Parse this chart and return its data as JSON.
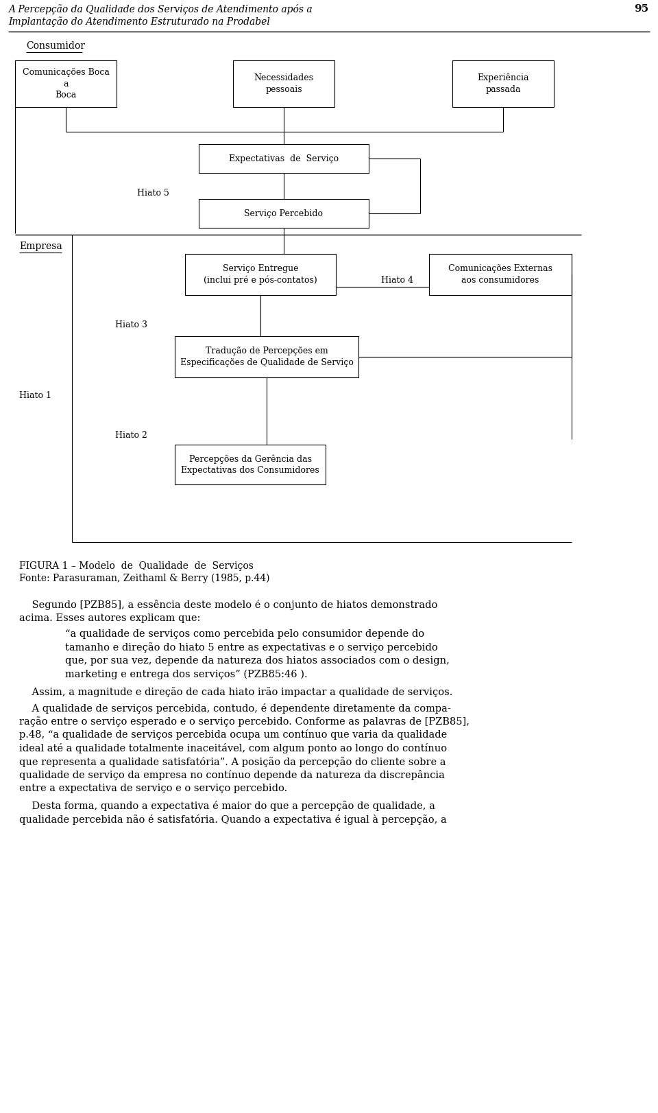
{
  "header_line1": "A Percepção da Qualidade dos Serviços de Atendimento após a",
  "header_line2": "Implantação do Atendimento Estruturado na Prodabel",
  "header_page": "95",
  "consumidor_label": "Consumidor",
  "empresa_label": "Empresa",
  "box_boca": "Comunicações Boca\na\nBoca",
  "box_necessidades": "Necessidades\npessoais",
  "box_experiencia": "Experiência\npassada",
  "box_expectativas": "Expectativas  de  Serviço",
  "box_percebido": "Serviço Percebido",
  "box_entregue": "Serviço Entregue\n(inclui pré e pós-contatos)",
  "box_comunicacoes": "Comunicações Externas\naos consumidores",
  "box_traducao": "Tradução de Percepções em\nEspecificações de Qualidade de Serviço",
  "box_percepcoes": "Percepções da Gerência das\nExpectativas dos Consumidores",
  "hiato1": "Hiato 1",
  "hiato2": "Hiato 2",
  "hiato3": "Hiato 3",
  "hiato4": "Hiato 4",
  "hiato5": "Hiato 5",
  "figura_label": "FIGURA 1 – Modelo  de  Qualidade  de  Serviços",
  "fonte_label": "Fonte: Parasuraman, Zeithaml & Berry (1985, p.44)",
  "para1_line1": "    Segundo [PZB85], a essência deste modelo é o conjunto de hiatos demonstrado",
  "para1_line2": "acima. Esses autores explicam que:",
  "bq_line1": "“a qualidade de serviços como percebida pelo consumidor depende do",
  "bq_line2": "tamanho e direção do hiato 5 entre as expectativas e o serviço percebido",
  "bq_line3": "que, por sua vez, depende da natureza dos hiatos associados com o design,",
  "bq_line4": "marketing e entrega dos serviços” (PZB85:46 ).",
  "para2": "    Assim, a magnitude e direção de cada hiato irão impactar a qualidade de serviços.",
  "para3_line1": "    A qualidade de serviços percebida, contudo, é dependente diretamente da compa-",
  "para3_line2": "ração entre o serviço esperado e o serviço percebido. Conforme as palavras de [PZB85],",
  "para3_line3": "p.48, “a qualidade de serviços percebida ocupa um contínuo que varia da qualidade",
  "para3_line4": "ideal até a qualidade totalmente inaceitável, com algum ponto ao longo do contínuo",
  "para3_line5": "que representa a qualidade satisfatória”. A posição da percepção do cliente sobre a",
  "para3_line6": "qualidade de serviço da empresa no contínuo depende da natureza da discrepância",
  "para3_line7": "entre a expectativa de serviço e o serviço percebido.",
  "para4_line1": "    Desta forma, quando a expectativa é maior do que a percepção de qualidade, a",
  "para4_line2": "qualidade percebida não é satisfatória. Quando a expectativa é igual à percepção, a"
}
